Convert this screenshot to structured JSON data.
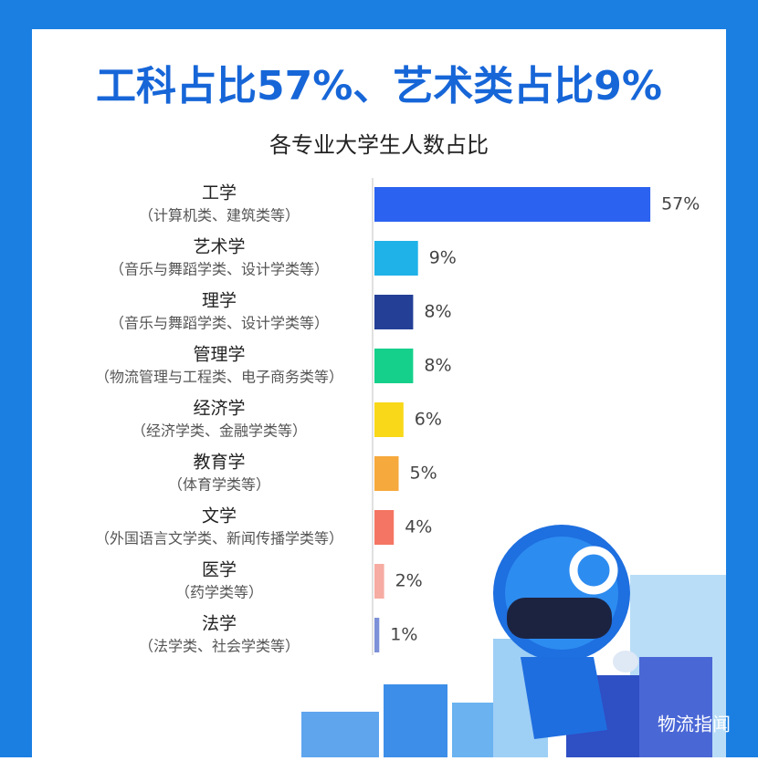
{
  "chart_data": {
    "type": "bar",
    "orientation": "horizontal",
    "title": "工科占比57%、艺术类占比9%",
    "subtitle": "各专业大学生人数占比",
    "categories": [
      "工学",
      "艺术学",
      "理学",
      "管理学",
      "经济学",
      "教育学",
      "文学",
      "医学",
      "法学"
    ],
    "category_notes": [
      "（计算机类、建筑类等）",
      "（音乐与舞蹈学类、设计学类等）",
      "（音乐与舞蹈学类、设计学类等）",
      "（物流管理与工程类、电子商务类等）",
      "（经济学类、金融学类等）",
      "（体育学类等）",
      "（外国语言文学类、新闻传播学类等）",
      "（药学类等）",
      "（法学类、社会学类等）"
    ],
    "values": [
      57,
      9,
      8,
      8,
      6,
      5,
      4,
      2,
      1
    ],
    "value_labels": [
      "57%",
      "9%",
      "8%",
      "8%",
      "6%",
      "5%",
      "4%",
      "2%",
      "1%"
    ],
    "colors": [
      "#2b62ef",
      "#1fb2e8",
      "#233f96",
      "#15d08b",
      "#f8d818",
      "#f6a93c",
      "#f47563",
      "#f6aca2",
      "#7d90d8"
    ],
    "watermark": "物流指闻"
  }
}
